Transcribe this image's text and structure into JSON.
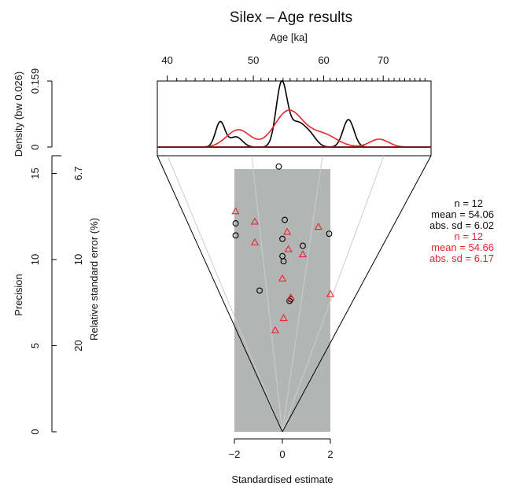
{
  "chart_data": {
    "type": "scatter",
    "title": "Silex – Age results",
    "top_axis": {
      "label": "Age [ka]",
      "ticks": [
        "40",
        "50",
        "60",
        "70"
      ]
    },
    "density_axis": {
      "label": "Density (bw 0.026)",
      "ticks": [
        "0",
        "0.159"
      ]
    },
    "precision_axis": {
      "label": "Precision",
      "ticks": [
        "0",
        "5",
        "10",
        "15"
      ]
    },
    "rse_axis": {
      "label": "Relative standard error (%)",
      "ticks": [
        "20",
        "10",
        "6.7"
      ]
    },
    "x_axis": {
      "label": "Standardised estimate",
      "ticks": [
        "−2",
        "0",
        "2"
      ],
      "range": [
        -2,
        2
      ]
    },
    "colors": {
      "series1": "#000000",
      "series2": "#e8262b",
      "band": "#b3b5b5",
      "rays": "#cccccc"
    },
    "series": [
      {
        "marker": "circle",
        "color": "#000000",
        "points": [
          {
            "x": -0.15,
            "y": 15.4
          },
          {
            "x": -1.95,
            "y": 12.1
          },
          {
            "x": 0.1,
            "y": 12.3
          },
          {
            "x": -1.95,
            "y": 11.4
          },
          {
            "x": 0.0,
            "y": 11.2
          },
          {
            "x": 1.95,
            "y": 11.5
          },
          {
            "x": 0.85,
            "y": 10.8
          },
          {
            "x": 0.0,
            "y": 10.2
          },
          {
            "x": 0.05,
            "y": 9.9
          },
          {
            "x": -0.95,
            "y": 8.2
          },
          {
            "x": 0.35,
            "y": 7.7
          },
          {
            "x": 0.3,
            "y": 7.6
          }
        ],
        "stats": {
          "n": "n = 12",
          "mean": "mean = 54.06",
          "sd": "abs. sd = 6.02"
        }
      },
      {
        "marker": "triangle",
        "color": "#e8262b",
        "points": [
          {
            "x": -1.95,
            "y": 12.8
          },
          {
            "x": -1.15,
            "y": 12.2
          },
          {
            "x": 1.5,
            "y": 11.9
          },
          {
            "x": 0.2,
            "y": 11.6
          },
          {
            "x": -1.15,
            "y": 11.0
          },
          {
            "x": 0.25,
            "y": 10.6
          },
          {
            "x": 0.85,
            "y": 10.3
          },
          {
            "x": 0.0,
            "y": 8.9
          },
          {
            "x": 2.0,
            "y": 8.0
          },
          {
            "x": 0.35,
            "y": 7.8
          },
          {
            "x": 0.05,
            "y": 6.6
          },
          {
            "x": -0.3,
            "y": 5.9
          }
        ],
        "stats": {
          "n": "n = 12",
          "mean": "mean = 54.66",
          "sd": "abs. sd = 6.17"
        }
      }
    ]
  }
}
